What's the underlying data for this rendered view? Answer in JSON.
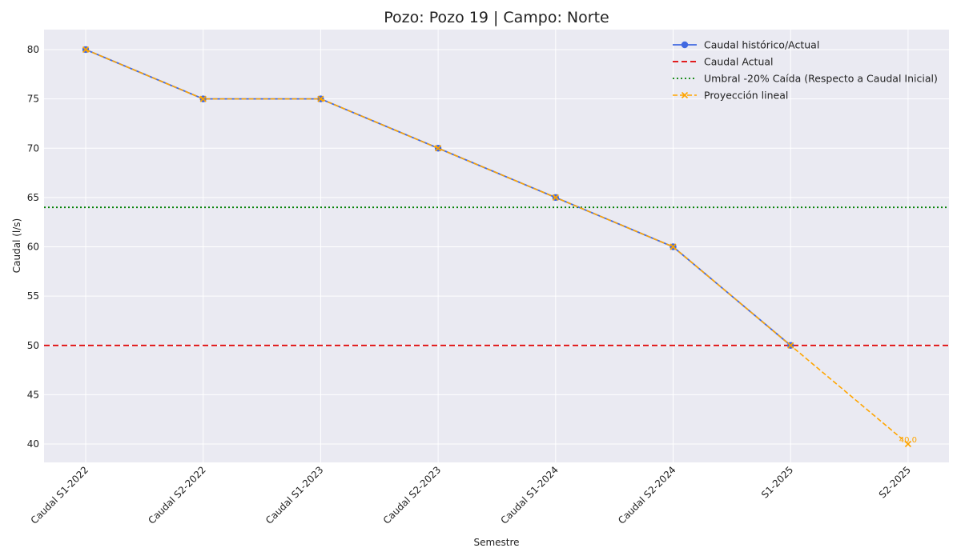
{
  "chart_data": {
    "type": "line",
    "title": "Pozo: Pozo 19 | Campo: Norte",
    "xlabel": "Semestre",
    "ylabel": "Caudal (l/s)",
    "categories": [
      "Caudal S1-2022",
      "Caudal S2-2022",
      "Caudal S1-2023",
      "Caudal S2-2023",
      "Caudal S1-2024",
      "Caudal S2-2024",
      "S1-2025",
      "S2-2025"
    ],
    "ylim": [
      38,
      82
    ],
    "yticks": [
      40,
      45,
      50,
      55,
      60,
      65,
      70,
      75,
      80
    ],
    "grid": true,
    "legend_position": "top-right",
    "series": [
      {
        "name": "Caudal histórico/Actual",
        "style": "solid-marker-circle",
        "color": "#4169e1",
        "values": [
          80,
          75,
          75,
          70,
          65,
          60,
          50,
          null
        ]
      },
      {
        "name": "Proyección lineal",
        "style": "dashed-marker-x",
        "color": "#ffa500",
        "values": [
          80,
          75,
          75,
          70,
          65,
          60,
          50,
          40.0
        ],
        "data_label": {
          "category": "S2-2025",
          "text": "40.0"
        }
      }
    ],
    "reference_lines": [
      {
        "name": "Caudal Actual",
        "y": 50,
        "style": "dashed",
        "color": "#e00000"
      },
      {
        "name": "Umbral -20% Caída (Respecto a Caudal Inicial)",
        "y": 64,
        "style": "dotted",
        "color": "#008000"
      }
    ],
    "legend": [
      {
        "label": "Caudal histórico/Actual",
        "kind": "line-circle",
        "color": "#4169e1"
      },
      {
        "label": "Caudal Actual",
        "kind": "dashed",
        "color": "#e00000"
      },
      {
        "label": "Umbral -20% Caída (Respecto a Caudal Inicial)",
        "kind": "dotted",
        "color": "#008000"
      },
      {
        "label": "Proyección lineal",
        "kind": "dashed-x",
        "color": "#ffa500"
      }
    ],
    "background_color": "#eaeaf2"
  }
}
